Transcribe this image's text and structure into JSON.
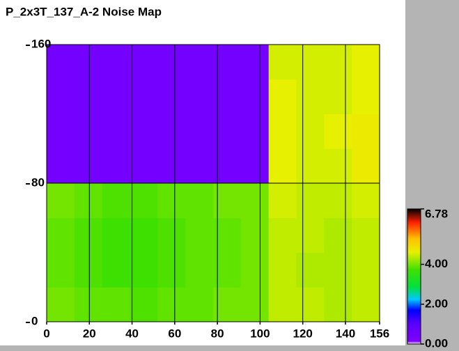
{
  "chart_data": {
    "type": "heatmap",
    "title": "P_2x3T_137_A-2 Noise Map",
    "x_edges": [
      0,
      13,
      26,
      39,
      52,
      65,
      78,
      91,
      104,
      117,
      130,
      143,
      156
    ],
    "y_edges": [
      0,
      20,
      40,
      60,
      80,
      100,
      120,
      140,
      160
    ],
    "z": [
      [
        4.0,
        3.9,
        3.9,
        3.8,
        3.9,
        3.9,
        4.0,
        4.0,
        4.4,
        4.4,
        4.3,
        4.4
      ],
      [
        3.9,
        3.8,
        3.7,
        3.7,
        3.8,
        3.9,
        3.9,
        4.0,
        4.4,
        4.3,
        4.3,
        4.4
      ],
      [
        3.9,
        3.8,
        3.7,
        3.7,
        3.8,
        3.9,
        3.9,
        4.0,
        4.4,
        4.4,
        4.3,
        4.4
      ],
      [
        4.0,
        3.9,
        3.8,
        3.8,
        3.9,
        3.9,
        4.0,
        4.0,
        4.5,
        4.4,
        4.4,
        4.5
      ],
      [
        0.4,
        0.4,
        0.4,
        0.4,
        0.4,
        0.4,
        0.4,
        0.4,
        4.6,
        4.5,
        4.5,
        4.7
      ],
      [
        0.4,
        0.4,
        0.4,
        0.4,
        0.4,
        0.4,
        0.4,
        0.4,
        4.6,
        4.5,
        4.6,
        4.7
      ],
      [
        0.4,
        0.4,
        0.4,
        0.4,
        0.4,
        0.4,
        0.4,
        0.4,
        4.6,
        4.5,
        4.5,
        4.6
      ],
      [
        0.4,
        0.4,
        0.4,
        0.4,
        0.4,
        0.4,
        0.4,
        0.4,
        4.5,
        4.5,
        4.5,
        4.6
      ]
    ],
    "xlim": [
      0,
      156
    ],
    "ylim": [
      0,
      160
    ],
    "xticks": [
      0,
      20,
      40,
      60,
      80,
      100,
      120,
      140,
      156
    ],
    "yticks": [
      0,
      80,
      160
    ],
    "clim": [
      0,
      6.78
    ],
    "cticks": [
      {
        "value": 0,
        "label": "0.00"
      },
      {
        "value": 2,
        "label": "2.00"
      },
      {
        "value": 4,
        "label": "4.00"
      },
      {
        "value": 6.78,
        "label": "6.78"
      }
    ],
    "colorscale": [
      [
        0,
        "#ffffff"
      ],
      [
        0.02,
        "#7f00ff"
      ],
      [
        0.15,
        "#5a00ff"
      ],
      [
        0.25,
        "#0000ff"
      ],
      [
        0.33,
        "#00c8ff"
      ],
      [
        0.42,
        "#00e040"
      ],
      [
        0.55,
        "#40e000"
      ],
      [
        0.68,
        "#e8f000"
      ],
      [
        0.78,
        "#ffc000"
      ],
      [
        0.9,
        "#ff2000"
      ],
      [
        1,
        "#000000"
      ]
    ],
    "grid": true
  }
}
